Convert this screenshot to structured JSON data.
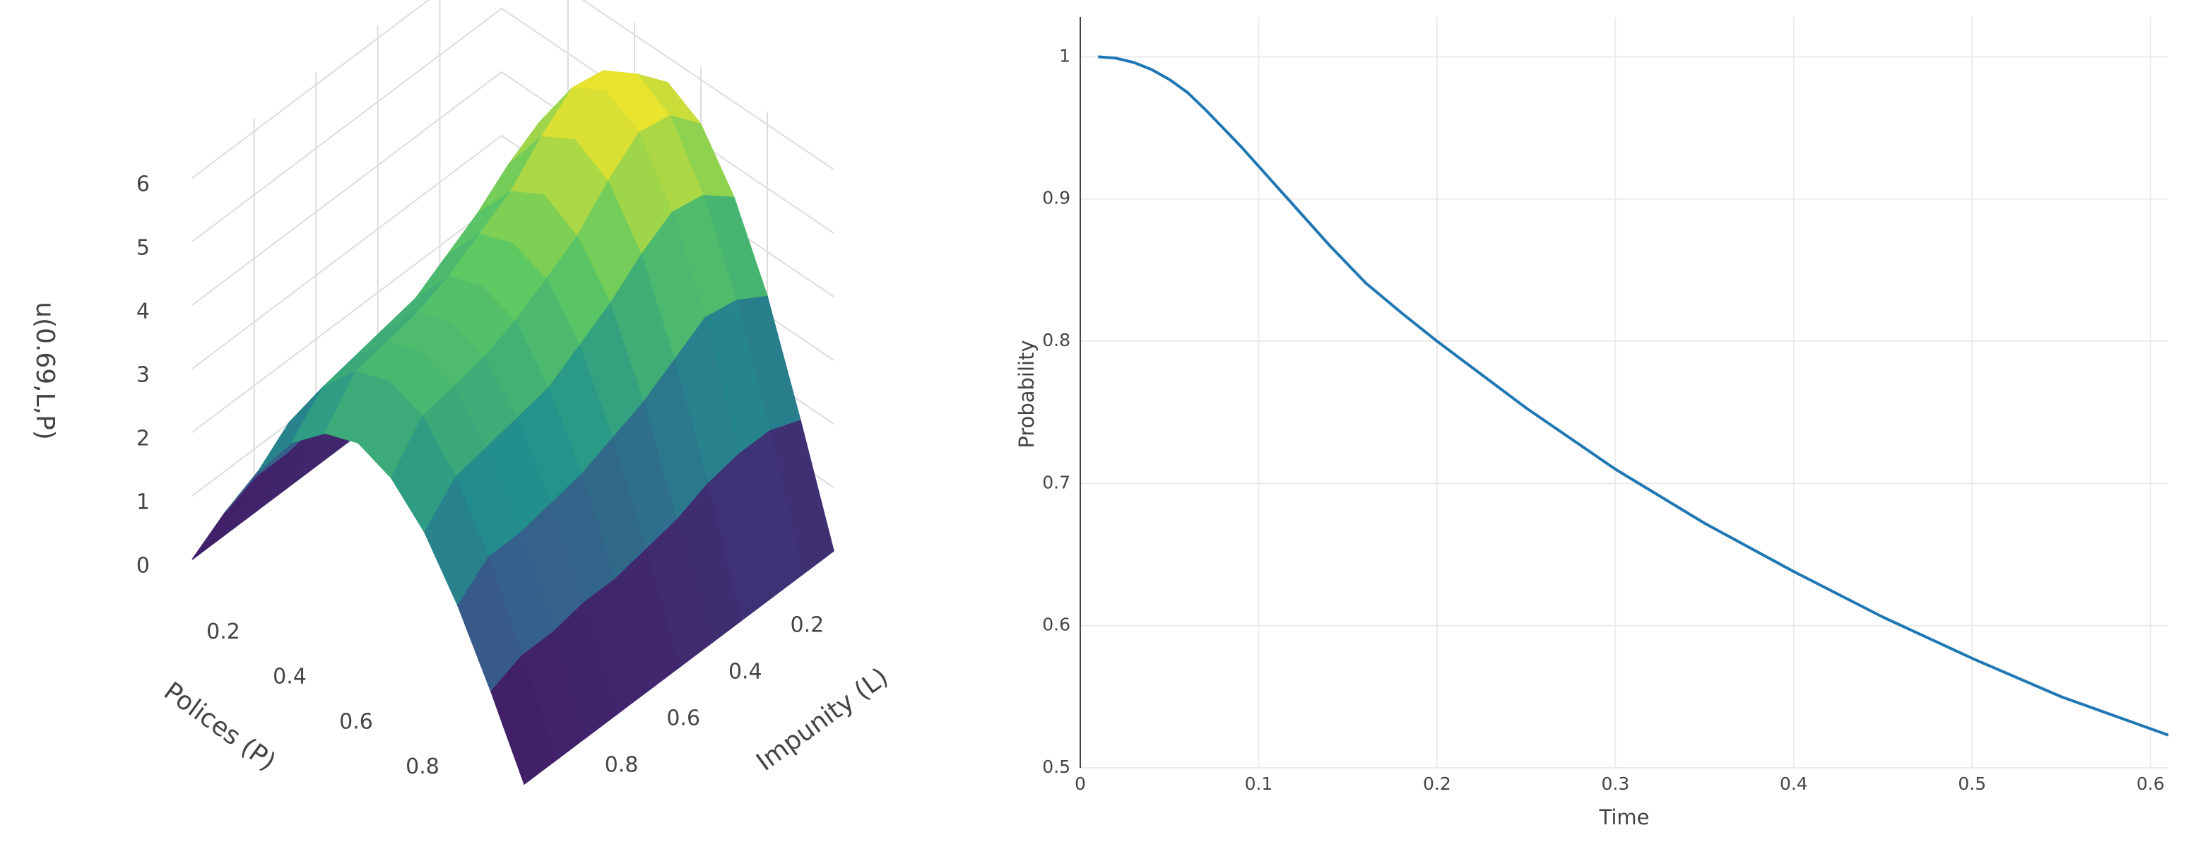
{
  "chart_data": [
    {
      "type": "surface",
      "xlabel": "Polices (P)",
      "ylabel": "Impunity (L)",
      "zlabel": "u(0.69,L,P)",
      "x": [
        0,
        0.1,
        0.2,
        0.3,
        0.4,
        0.5,
        0.6,
        0.7,
        0.8,
        0.9,
        1
      ],
      "y": [
        0,
        0.1,
        0.2,
        0.3,
        0.4,
        0.5,
        0.6,
        0.7,
        0.8,
        0.9,
        1
      ],
      "z": [
        [
          0,
          1.7,
          3.3,
          4.5,
          5.3,
          5.6,
          5.3,
          4.5,
          3.3,
          1.7,
          0
        ],
        [
          0,
          1.9,
          3.6,
          4.9,
          5.8,
          6.1,
          5.8,
          4.9,
          3.6,
          1.9,
          0
        ],
        [
          0,
          1.9,
          3.7,
          5.0,
          5.9,
          6.2,
          5.9,
          5.0,
          3.7,
          1.9,
          0
        ],
        [
          0,
          1.8,
          3.4,
          4.7,
          5.5,
          5.8,
          5.5,
          4.7,
          3.4,
          1.8,
          0
        ],
        [
          0,
          1.6,
          3.1,
          4.3,
          5.0,
          5.3,
          5.0,
          4.3,
          3.1,
          1.6,
          0
        ],
        [
          0,
          1.5,
          2.9,
          4.0,
          4.7,
          4.9,
          4.7,
          4.0,
          2.9,
          1.5,
          0
        ],
        [
          0,
          1.4,
          2.7,
          3.7,
          4.4,
          4.6,
          4.4,
          3.7,
          2.7,
          1.4,
          0
        ],
        [
          0,
          1.4,
          2.6,
          3.6,
          4.2,
          4.4,
          4.2,
          3.6,
          2.6,
          1.4,
          0
        ],
        [
          0,
          1.3,
          2.5,
          3.5,
          4.1,
          4.3,
          4.1,
          3.5,
          2.5,
          1.3,
          0
        ],
        [
          0,
          1.3,
          2.5,
          3.4,
          4.0,
          4.2,
          4.0,
          3.4,
          2.5,
          1.3,
          0
        ],
        [
          0,
          1.1,
          2.1,
          2.9,
          3.4,
          3.6,
          3.4,
          2.9,
          2.1,
          1.1,
          0
        ]
      ],
      "xlim": [
        0,
        1
      ],
      "ylim": [
        0,
        1
      ],
      "zlim": [
        0,
        6.2
      ],
      "xticks": [
        0.2,
        0.4,
        0.6,
        0.8
      ],
      "yticks": [
        0.2,
        0.4,
        0.6,
        0.8
      ],
      "zticks": [
        0,
        1,
        2,
        3,
        4,
        5,
        6
      ],
      "colorscale": [
        "#440154",
        "#3b528b",
        "#21918c",
        "#5ec962",
        "#fde725"
      ]
    },
    {
      "type": "line",
      "xlabel": "Time",
      "ylabel": "Probability",
      "x": [
        0.01,
        0.02,
        0.03,
        0.04,
        0.05,
        0.06,
        0.07,
        0.08,
        0.09,
        0.1,
        0.12,
        0.14,
        0.16,
        0.18,
        0.2,
        0.25,
        0.3,
        0.35,
        0.4,
        0.45,
        0.5,
        0.55,
        0.61
      ],
      "values": [
        1,
        0.999,
        0.996,
        0.991,
        0.984,
        0.975,
        0.963,
        0.95,
        0.937,
        0.923,
        0.895,
        0.867,
        0.841,
        0.82,
        0.8,
        0.753,
        0.71,
        0.672,
        0.638,
        0.606,
        0.577,
        0.55,
        0.523
      ],
      "color": "#1f77b4",
      "xlim": [
        0,
        0.61
      ],
      "ylim": [
        0.5,
        1.028
      ],
      "xticks": [
        0,
        0.1,
        0.2,
        0.3,
        0.4,
        0.5,
        0.6
      ],
      "yticks": [
        0.5,
        0.6,
        0.7,
        0.8,
        0.9,
        1
      ],
      "grid": true
    }
  ]
}
